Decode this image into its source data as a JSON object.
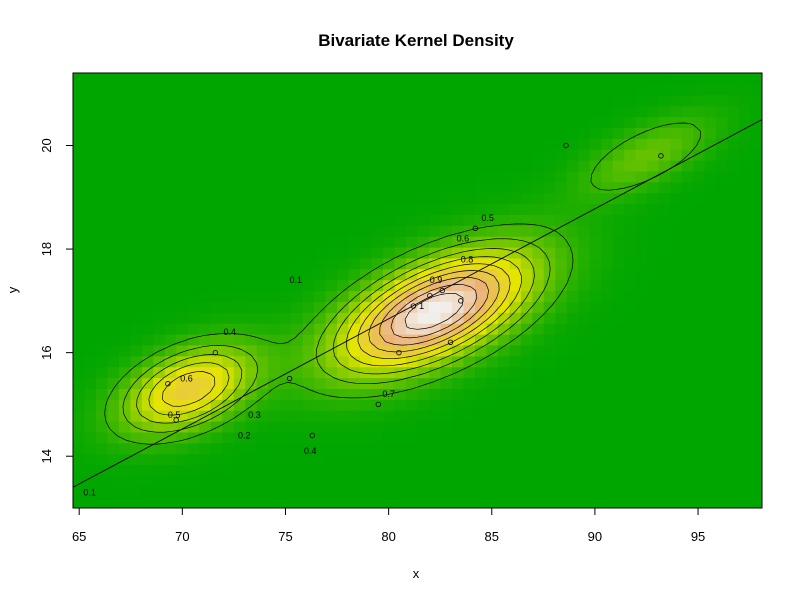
{
  "chart_data": {
    "type": "heatmap",
    "title": "Bivariate Kernel Density",
    "xlabel": "x",
    "ylabel": "y",
    "xlim": [
      64.7,
      98.1
    ],
    "ylim": [
      13.0,
      21.4
    ],
    "x_ticks": [
      "65",
      "70",
      "75",
      "80",
      "85",
      "90",
      "95"
    ],
    "y_ticks": [
      "14",
      "16",
      "18",
      "20"
    ],
    "grid": false,
    "legend": "none",
    "colors": {
      "low": "#00a600",
      "low_mid": "#e6e600",
      "mid_high": "#ecb176",
      "high": "#f2f2f2",
      "contour": "#000000"
    },
    "density_peaks": [
      {
        "x": 82.2,
        "y": 16.8,
        "value": 1.0
      },
      {
        "x": 70.3,
        "y": 15.3,
        "value": 0.6
      },
      {
        "x": 92.5,
        "y": 19.8,
        "value": 0.2
      }
    ],
    "contour_levels": [
      {
        "label": "0.1",
        "x": 65.5,
        "y": 13.3
      },
      {
        "label": "0.1",
        "x": 75.5,
        "y": 17.4
      },
      {
        "label": "0.2",
        "x": 73.0,
        "y": 14.4
      },
      {
        "label": "0.3",
        "x": 73.5,
        "y": 14.8
      },
      {
        "label": "0.4",
        "x": 72.3,
        "y": 16.4
      },
      {
        "label": "0.4",
        "x": 76.2,
        "y": 14.1
      },
      {
        "label": "0.5",
        "x": 69.6,
        "y": 14.8
      },
      {
        "label": "0.5",
        "x": 84.8,
        "y": 18.6
      },
      {
        "label": "0.6",
        "x": 70.2,
        "y": 15.5
      },
      {
        "label": "0.6",
        "x": 83.6,
        "y": 18.2
      },
      {
        "label": "0.7",
        "x": 80.0,
        "y": 15.2
      },
      {
        "label": "0.8",
        "x": 83.8,
        "y": 17.8
      },
      {
        "label": "0.9",
        "x": 82.3,
        "y": 17.4
      },
      {
        "label": "1",
        "x": 81.6,
        "y": 16.9
      }
    ],
    "points": [
      {
        "x": 69.3,
        "y": 15.4
      },
      {
        "x": 69.7,
        "y": 14.7
      },
      {
        "x": 71.6,
        "y": 16.0
      },
      {
        "x": 75.2,
        "y": 15.5
      },
      {
        "x": 76.3,
        "y": 14.4
      },
      {
        "x": 79.5,
        "y": 15.0
      },
      {
        "x": 80.5,
        "y": 16.0
      },
      {
        "x": 81.2,
        "y": 16.9
      },
      {
        "x": 82.0,
        "y": 17.1
      },
      {
        "x": 82.6,
        "y": 17.2
      },
      {
        "x": 83.0,
        "y": 16.2
      },
      {
        "x": 83.5,
        "y": 17.0
      },
      {
        "x": 84.2,
        "y": 18.4
      },
      {
        "x": 88.6,
        "y": 20.0
      },
      {
        "x": 93.2,
        "y": 19.8
      }
    ],
    "regression_line": {
      "x": [
        64.7,
        98.1
      ],
      "y": [
        13.4,
        20.5
      ]
    }
  }
}
